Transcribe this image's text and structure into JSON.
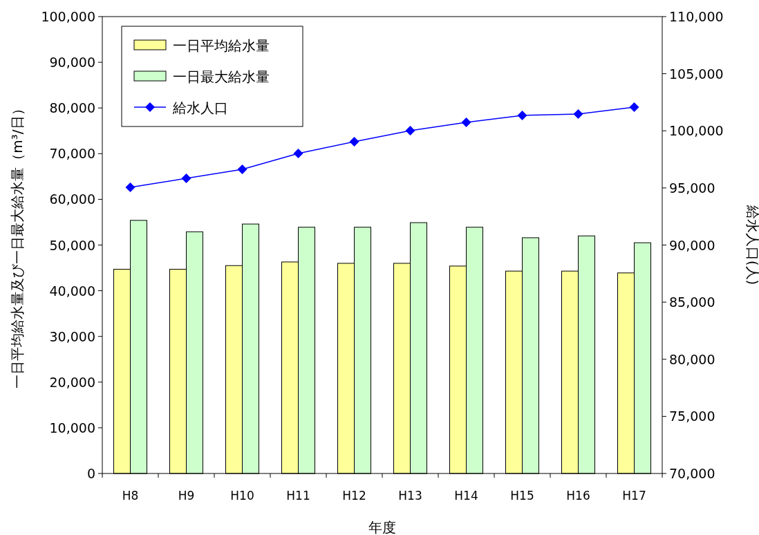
{
  "chart_data": {
    "type": "bar",
    "xlabel": "年度",
    "ylabel": "一日平均給水量及び一日最大給水量（m³/日）",
    "y2label": "給水人口(人)",
    "categories": [
      "H8",
      "H9",
      "H10",
      "H11",
      "H12",
      "H13",
      "H14",
      "H15",
      "H16",
      "H17"
    ],
    "series": [
      {
        "name": "一日平均給水量",
        "color": "#ffff99",
        "values": [
          44700,
          44700,
          45500,
          46300,
          46000,
          46000,
          45400,
          44300,
          44300,
          43900
        ]
      },
      {
        "name": "一日最大給水量",
        "color": "#ccffcc",
        "values": [
          55400,
          52900,
          54600,
          53900,
          53900,
          54900,
          53900,
          51600,
          52000,
          50500
        ]
      },
      {
        "name": "給水人口",
        "type": "line",
        "axis": "y2",
        "color": "#0000ff",
        "marker": "diamond",
        "values": [
          95050,
          95840,
          96630,
          98020,
          99050,
          100010,
          100740,
          101350,
          101470,
          102070
        ]
      }
    ],
    "ylim": [
      0,
      100000
    ],
    "yticks": [
      {
        "value": 0,
        "label": "0"
      },
      {
        "value": 10000,
        "label": "10,000"
      },
      {
        "value": 20000,
        "label": "20,000"
      },
      {
        "value": 30000,
        "label": "30,000"
      },
      {
        "value": 40000,
        "label": "40,000"
      },
      {
        "value": 50000,
        "label": "50,000"
      },
      {
        "value": 60000,
        "label": "60,000"
      },
      {
        "value": 70000,
        "label": "70,000"
      },
      {
        "value": 80000,
        "label": "80,000"
      },
      {
        "value": 90000,
        "label": "90,000"
      },
      {
        "value": 100000,
        "label": "100,000"
      }
    ],
    "y2lim": [
      70000,
      110000
    ],
    "y2ticks": [
      {
        "value": 70000,
        "label": "70,000"
      },
      {
        "value": 75000,
        "label": "75,000"
      },
      {
        "value": 80000,
        "label": "80,000"
      },
      {
        "value": 85000,
        "label": "85,000"
      },
      {
        "value": 90000,
        "label": "90,000"
      },
      {
        "value": 95000,
        "label": "95,000"
      },
      {
        "value": 100000,
        "label": "100,000"
      },
      {
        "value": 105000,
        "label": "105,000"
      },
      {
        "value": 110000,
        "label": "110,000"
      }
    ],
    "legend": "top left"
  }
}
